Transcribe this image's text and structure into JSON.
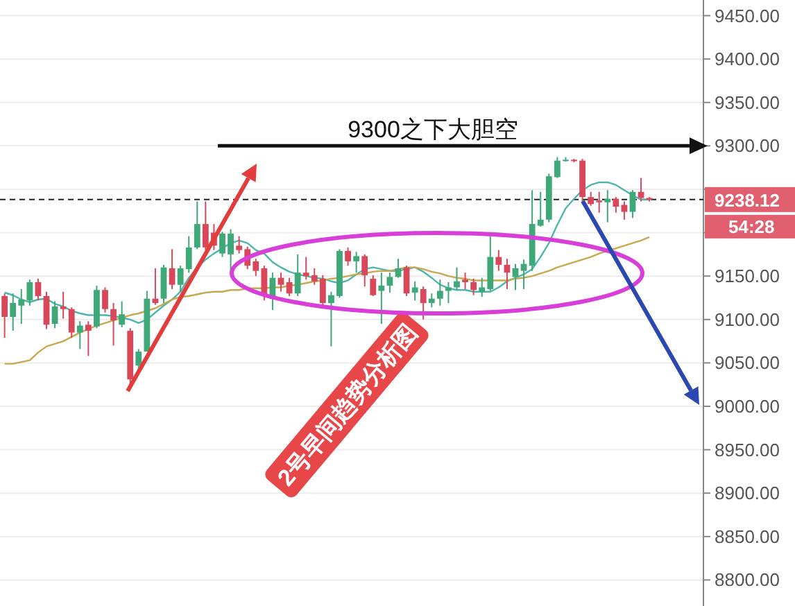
{
  "chart_data": {
    "type": "candlestick",
    "categories": [
      null,
      null,
      null,
      null,
      null,
      null,
      null,
      null,
      null,
      null,
      null,
      null,
      null,
      null,
      null,
      null,
      null,
      null,
      null,
      null,
      null,
      null,
      null,
      null,
      null,
      null,
      null,
      null,
      null,
      null,
      null,
      null,
      null,
      null,
      null,
      null,
      null,
      null,
      null,
      null,
      null,
      null,
      null,
      null,
      null,
      null,
      null,
      null,
      null,
      null,
      null,
      null,
      null,
      null,
      null,
      null,
      null,
      null,
      null,
      null,
      null,
      null,
      null,
      null,
      null,
      null,
      null,
      null,
      null,
      null,
      null,
      null,
      null,
      null,
      null,
      null,
      null,
      null
    ],
    "ohlc": [
      [
        9127,
        9130,
        9079,
        9103
      ],
      [
        9103,
        9130,
        9087,
        9119
      ],
      [
        9116,
        9135,
        9095,
        9123
      ],
      [
        9122,
        9146,
        9116,
        9143
      ],
      [
        9143,
        9147,
        9122,
        9127
      ],
      [
        9127,
        9132,
        9089,
        9094
      ],
      [
        9095,
        9121,
        9090,
        9115
      ],
      [
        9115,
        9132,
        9101,
        9112
      ],
      [
        9112,
        9114,
        9079,
        9085
      ],
      [
        9085,
        9098,
        9066,
        9093
      ],
      [
        9094,
        9098,
        9058,
        9087
      ],
      [
        9092,
        9139,
        9090,
        9134
      ],
      [
        9134,
        9137,
        9108,
        9112
      ],
      [
        9112,
        9119,
        9070,
        9099
      ],
      [
        9094,
        9121,
        9091,
        9106
      ],
      [
        9087,
        9090,
        9021,
        9031
      ],
      [
        9047,
        9066,
        9042,
        9063
      ],
      [
        9063,
        9133,
        9063,
        9124
      ],
      [
        9124,
        9159,
        9117,
        9119
      ],
      [
        9124,
        9163,
        9119,
        9160
      ],
      [
        9159,
        9181,
        9135,
        9140
      ],
      [
        9140,
        9162,
        9132,
        9159
      ],
      [
        9158,
        9196,
        9154,
        9183
      ],
      [
        9183,
        9236,
        9181,
        9210
      ],
      [
        9210,
        9236,
        9180,
        9183
      ],
      [
        9200,
        9210,
        9180,
        9185
      ],
      [
        9176,
        9201,
        9172,
        9199
      ],
      [
        9175,
        9204,
        9156,
        9199
      ],
      [
        9185,
        9196,
        9176,
        9180
      ],
      [
        9181,
        9184,
        9158,
        9162
      ],
      [
        9167,
        9170,
        9150,
        9156
      ],
      [
        9159,
        9162,
        9122,
        9127
      ],
      [
        9126,
        9154,
        9111,
        9148
      ],
      [
        9148,
        9154,
        9132,
        9140
      ],
      [
        9143,
        9148,
        9127,
        9130
      ],
      [
        9130,
        9175,
        9127,
        9154
      ],
      [
        9154,
        9172,
        9146,
        9150
      ],
      [
        9151,
        9159,
        9140,
        9144
      ],
      [
        9147,
        9151,
        9114,
        9119
      ],
      [
        9119,
        9132,
        9069,
        9128
      ],
      [
        9127,
        9181,
        9125,
        9179
      ],
      [
        9179,
        9183,
        9162,
        9167
      ],
      [
        9167,
        9178,
        9154,
        9173
      ],
      [
        9173,
        9175,
        9138,
        9151
      ],
      [
        9147,
        9151,
        9127,
        9128
      ],
      [
        9133,
        9154,
        9095,
        9139
      ],
      [
        9139,
        9154,
        9131,
        9149
      ],
      [
        9149,
        9170,
        9148,
        9159
      ],
      [
        9160,
        9162,
        9127,
        9130
      ],
      [
        9131,
        9144,
        9122,
        9137
      ],
      [
        9135,
        9138,
        9100,
        9119
      ],
      [
        9119,
        9130,
        9114,
        9124
      ],
      [
        9124,
        9146,
        9116,
        9133
      ],
      [
        9133,
        9143,
        9119,
        9137
      ],
      [
        9137,
        9160,
        9134,
        9144
      ],
      [
        9146,
        9154,
        9135,
        9143
      ],
      [
        9143,
        9147,
        9128,
        9134
      ],
      [
        9132,
        9148,
        9126,
        9137
      ],
      [
        9135,
        9196,
        9133,
        9172
      ],
      [
        9172,
        9180,
        9156,
        9163
      ],
      [
        9163,
        9170,
        9135,
        9154
      ],
      [
        9149,
        9164,
        9134,
        9159
      ],
      [
        9156,
        9169,
        9135,
        9164
      ],
      [
        9162,
        9249,
        9156,
        9210
      ],
      [
        9208,
        9247,
        9207,
        9215
      ],
      [
        9215,
        9268,
        9212,
        9265
      ],
      [
        9264,
        9287,
        9263,
        9283
      ],
      [
        9283,
        9287,
        9282,
        9284
      ],
      [
        9284,
        9285,
        9281,
        9283
      ],
      [
        9283,
        9285,
        9233,
        9241
      ],
      [
        9241,
        9247,
        9231,
        9233
      ],
      [
        9237,
        9247,
        9223,
        9235
      ],
      [
        9235,
        9249,
        9212,
        9239
      ],
      [
        9239,
        9241,
        9223,
        9230
      ],
      [
        9232,
        9236,
        9215,
        9224
      ],
      [
        9224,
        9249,
        9217,
        9247
      ],
      [
        9247,
        9263,
        9236,
        9240
      ],
      [
        9240,
        9241,
        9236,
        9238
      ]
    ],
    "colors": [
      "#d9485a",
      "#3fa878",
      "#3fa878",
      "#3fa878",
      "#d9485a",
      "#d9485a",
      "#3fa878",
      "#d9485a",
      "#d9485a",
      "#3fa878",
      "#d9485a",
      "#3fa878",
      "#d9485a",
      "#d9485a",
      "#3fa878",
      "#d9485a",
      "#3fa878",
      "#3fa878",
      "#d9485a",
      "#3fa878",
      "#d9485a",
      "#3fa878",
      "#3fa878",
      "#3fa878",
      "#d9485a",
      "#d9485a",
      "#3fa878",
      "#3fa878",
      "#d9485a",
      "#d9485a",
      "#d9485a",
      "#d9485a",
      "#3fa878",
      "#d9485a",
      "#d9485a",
      "#3fa878",
      "#d9485a",
      "#d9485a",
      "#d9485a",
      "#3fa878",
      "#3fa878",
      "#d9485a",
      "#3fa878",
      "#d9485a",
      "#d9485a",
      "#3fa878",
      "#3fa878",
      "#3fa878",
      "#d9485a",
      "#3fa878",
      "#d9485a",
      "#3fa878",
      "#3fa878",
      "#3fa878",
      "#3fa878",
      "#d9485a",
      "#d9485a",
      "#3fa878",
      "#3fa878",
      "#d9485a",
      "#d9485a",
      "#3fa878",
      "#3fa878",
      "#3fa878",
      "#3fa878",
      "#3fa878",
      "#3fa878",
      "#3fa878",
      "#d9485a",
      "#d9485a",
      "#d9485a",
      "#d9485a",
      "#3fa878",
      "#d9485a",
      "#d9485a",
      "#3fa878",
      "#d9485a",
      "#d9485a"
    ],
    "series": [
      {
        "type": "line",
        "color": "#4db6ac",
        "values": [
          9131,
          9128,
          9123,
          9120,
          9123,
          9124,
          9118,
          9115,
          9110,
          9107,
          9105,
          9105,
          9105,
          9104,
          9102,
          9100,
          9096,
          9100,
          9108,
          9116,
          9123,
          9132,
          9148,
          9160,
          9169,
          9176,
          9182,
          9188,
          9191,
          9188,
          9180,
          9176,
          9166,
          9160,
          9155,
          9152,
          9150,
          9148,
          9147,
          9144,
          9142,
          9145,
          9152,
          9158,
          9160,
          9158,
          9156,
          9156,
          9158,
          9160,
          9155,
          9148,
          9140,
          9136,
          9134,
          9134,
          9132,
          9132,
          9132,
          9137,
          9144,
          9148,
          9152,
          9158,
          9172,
          9188,
          9209,
          9228,
          9239,
          9249,
          9255,
          9258,
          9258,
          9255,
          9249,
          9243,
          9238,
          9238
        ]
      },
      {
        "type": "line",
        "color": "#c9a74e",
        "values": [
          9049,
          9049,
          9051,
          9053,
          9062,
          9069,
          9072,
          9075,
          9080,
          9085,
          9089,
          9093,
          9096,
          9099,
          9102,
          9105,
          9107,
          9110,
          9113,
          9118,
          9123,
          9126,
          9127,
          9129,
          9131,
          9132,
          9132,
          9134,
          9134,
          9136,
          9136,
          9136,
          9137,
          9137,
          9139,
          9140,
          9142,
          9144,
          9145,
          9147,
          9148,
          9150,
          9152,
          9153,
          9155,
          9156,
          9156,
          9158,
          9160,
          9160,
          9158,
          9155,
          9153,
          9150,
          9148,
          9147,
          9145,
          9145,
          9145,
          9145,
          9145,
          9147,
          9148,
          9150,
          9153,
          9156,
          9160,
          9163,
          9166,
          9169,
          9172,
          9176,
          9179,
          9182,
          9185,
          9188,
          9191,
          9195
        ]
      }
    ],
    "ylim": [
      8770,
      9468
    ],
    "yticks": [
      {
        "value": 9450,
        "label": "9450.00"
      },
      {
        "value": 9400,
        "label": "9400.00"
      },
      {
        "value": 9350,
        "label": "9350.00"
      },
      {
        "value": 9300,
        "label": "9300.00"
      },
      {
        "value": 9250,
        "label": null
      },
      {
        "value": 9200,
        "label": null
      },
      {
        "value": 9150,
        "label": "9150.00"
      },
      {
        "value": 9100,
        "label": "9100.00"
      },
      {
        "value": 9050,
        "label": "9050.00"
      },
      {
        "value": 9000,
        "label": "9000.00"
      },
      {
        "value": 8950,
        "label": "8950.00"
      },
      {
        "value": 8900,
        "label": "8900.00"
      },
      {
        "value": 8850,
        "label": "8850.00"
      },
      {
        "value": 8800,
        "label": "8800.00"
      }
    ],
    "grid": "y",
    "marker": "none",
    "ref_lines": [
      {
        "axis": "y",
        "value": 9238.12,
        "label": "9238.12",
        "color": "#222222",
        "line_style": "dashed"
      },
      {
        "axis": "y",
        "value": 9300,
        "label": "9300之下大胆空",
        "color": "#111111"
      }
    ],
    "annotations": [
      "2号早间趋势分析图",
      "54:28"
    ]
  }
}
